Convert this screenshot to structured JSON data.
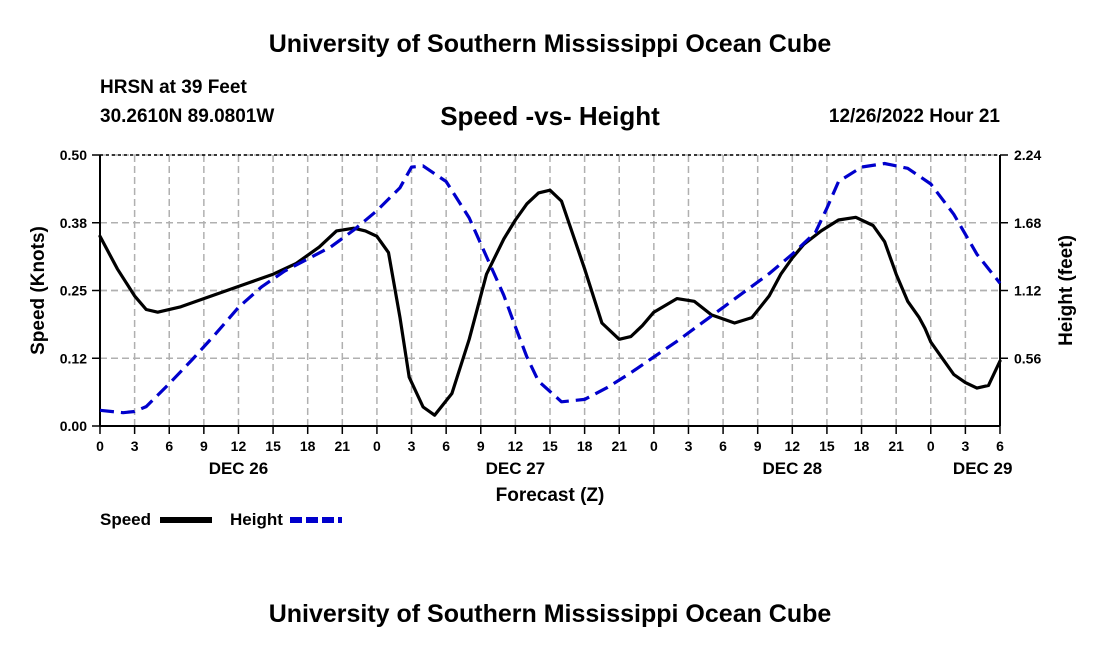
{
  "page": {
    "title": "University of Southern Mississippi Ocean Cube",
    "footer_title": "University of Southern Mississippi Ocean Cube",
    "station": "HRSN at 39 Feet",
    "coords": "30.2610N  89.0801W",
    "subtitle": "Speed -vs- Height",
    "datetime": "12/26/2022 Hour 21"
  },
  "chart_data": {
    "type": "line",
    "title": "Speed -vs- Height",
    "xlabel": "Forecast (Z)",
    "ylabel": "Speed (Knots)",
    "y2label": "Height (feet)",
    "xlim": [
      0,
      78
    ],
    "ylim": [
      0,
      0.5
    ],
    "y2lim": [
      0,
      2.24
    ],
    "x_ticks": [
      0,
      3,
      6,
      9,
      12,
      15,
      18,
      21,
      24,
      27,
      30,
      33,
      36,
      39,
      42,
      45,
      48,
      51,
      54,
      57,
      60,
      63,
      66,
      69,
      72,
      75,
      78
    ],
    "x_tick_labels": [
      "0",
      "3",
      "6",
      "9",
      "12",
      "15",
      "18",
      "21",
      "0",
      "3",
      "6",
      "9",
      "12",
      "15",
      "18",
      "21",
      "0",
      "3",
      "6",
      "9",
      "12",
      "15",
      "18",
      "21",
      "0",
      "3",
      "6"
    ],
    "y_ticks": [
      0,
      0.125,
      0.25,
      0.375,
      0.5
    ],
    "y_tick_labels": [
      "0.00",
      "0.12",
      "0.25",
      "0.38",
      "0.50"
    ],
    "y2_ticks": [
      0.56,
      1.12,
      1.68,
      2.24
    ],
    "y2_tick_labels": [
      "0.56",
      "1.12",
      "1.68",
      "2.24"
    ],
    "date_labels": [
      {
        "x": 12,
        "label": "DEC 26"
      },
      {
        "x": 36,
        "label": "DEC 27"
      },
      {
        "x": 60,
        "label": "DEC 28"
      },
      {
        "x": 76.5,
        "label": "DEC 29"
      }
    ],
    "grid": true,
    "legend_position": "bottom-left",
    "series": [
      {
        "name": "Speed",
        "axis": "left",
        "color": "#000000",
        "dash": "solid",
        "x": [
          0,
          1.5,
          3,
          4,
          5,
          7,
          9,
          11,
          13,
          15,
          17,
          19,
          20.5,
          22,
          23,
          24,
          25,
          26,
          26.8,
          28,
          29,
          30.5,
          32,
          33.5,
          35,
          36,
          37,
          38,
          39,
          40,
          42,
          43.5,
          45,
          46,
          47,
          48,
          50,
          51.5,
          53,
          55,
          56.5,
          58,
          59,
          60,
          61,
          62.5,
          64,
          65.5,
          67,
          68,
          69,
          70,
          71,
          71.5,
          72,
          73,
          74,
          75,
          76,
          77,
          78
        ],
        "values": [
          0.35,
          0.29,
          0.24,
          0.215,
          0.21,
          0.22,
          0.235,
          0.25,
          0.265,
          0.28,
          0.3,
          0.33,
          0.36,
          0.365,
          0.36,
          0.35,
          0.32,
          0.2,
          0.09,
          0.035,
          0.02,
          0.06,
          0.16,
          0.28,
          0.345,
          0.38,
          0.41,
          0.43,
          0.435,
          0.415,
          0.29,
          0.19,
          0.16,
          0.165,
          0.185,
          0.21,
          0.235,
          0.23,
          0.205,
          0.19,
          0.2,
          0.24,
          0.28,
          0.31,
          0.335,
          0.36,
          0.38,
          0.385,
          0.37,
          0.34,
          0.28,
          0.23,
          0.2,
          0.18,
          0.155,
          0.125,
          0.095,
          0.08,
          0.07,
          0.075,
          0.12
        ]
      },
      {
        "name": "Height",
        "axis": "right",
        "color": "#0000cc",
        "dash": "dashed",
        "x": [
          0,
          2,
          3,
          4,
          6,
          8,
          10,
          12,
          14,
          16,
          18,
          20,
          22,
          24,
          26,
          27,
          28,
          30,
          32,
          33.5,
          35,
          36,
          37,
          38,
          40,
          42,
          44,
          46,
          48,
          50,
          52,
          54,
          56,
          58,
          60,
          62,
          63,
          64,
          66,
          68,
          70,
          72,
          74,
          76,
          78
        ],
        "values": [
          0.13,
          0.11,
          0.12,
          0.16,
          0.35,
          0.55,
          0.76,
          0.98,
          1.15,
          1.28,
          1.38,
          1.48,
          1.62,
          1.78,
          1.97,
          2.14,
          2.15,
          2.02,
          1.72,
          1.4,
          1.08,
          0.82,
          0.57,
          0.37,
          0.2,
          0.22,
          0.32,
          0.44,
          0.57,
          0.7,
          0.84,
          0.98,
          1.12,
          1.26,
          1.42,
          1.6,
          1.8,
          2.02,
          2.14,
          2.17,
          2.13,
          2.0,
          1.75,
          1.42,
          1.18
        ]
      }
    ],
    "legend": [
      {
        "name": "Speed",
        "color": "#000000",
        "dash": "solid"
      },
      {
        "name": "Height",
        "color": "#0000cc",
        "dash": "dashed"
      }
    ]
  }
}
